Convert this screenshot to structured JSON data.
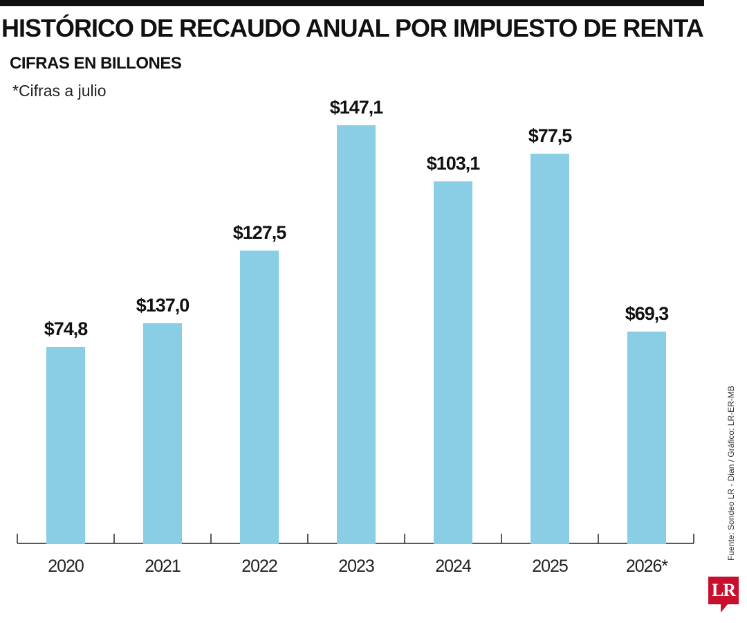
{
  "title": "HISTÓRICO DE RECAUDO ANUAL POR IMPUESTO DE RENTA",
  "subtitle": "CIFRAS EN BILLONES",
  "note": "*Cifras a julio",
  "source": "Fuente: Sondeo LR - Dian / Gráfico: LR-ER-MB",
  "logo": "LR",
  "colors": {
    "bar": "#89cee4",
    "axis": "#222222",
    "brand": "#c8102e"
  },
  "chart_data": {
    "type": "bar",
    "title": "HISTÓRICO DE RECAUDO ANUAL POR IMPUESTO DE RENTA",
    "subtitle": "CIFRAS EN BILLONES",
    "categories": [
      "2020",
      "2021",
      "2022",
      "2023",
      "2024",
      "2025",
      "2026*"
    ],
    "values": [
      74.8,
      137.0,
      127.5,
      147.1,
      103.1,
      77.5,
      69.3
    ],
    "labels": [
      "$74,8",
      "$137,0",
      "$127,5",
      "$147,1",
      "$103,1",
      "$77,5",
      "$69,3"
    ],
    "grid": false,
    "legend": "none"
  }
}
